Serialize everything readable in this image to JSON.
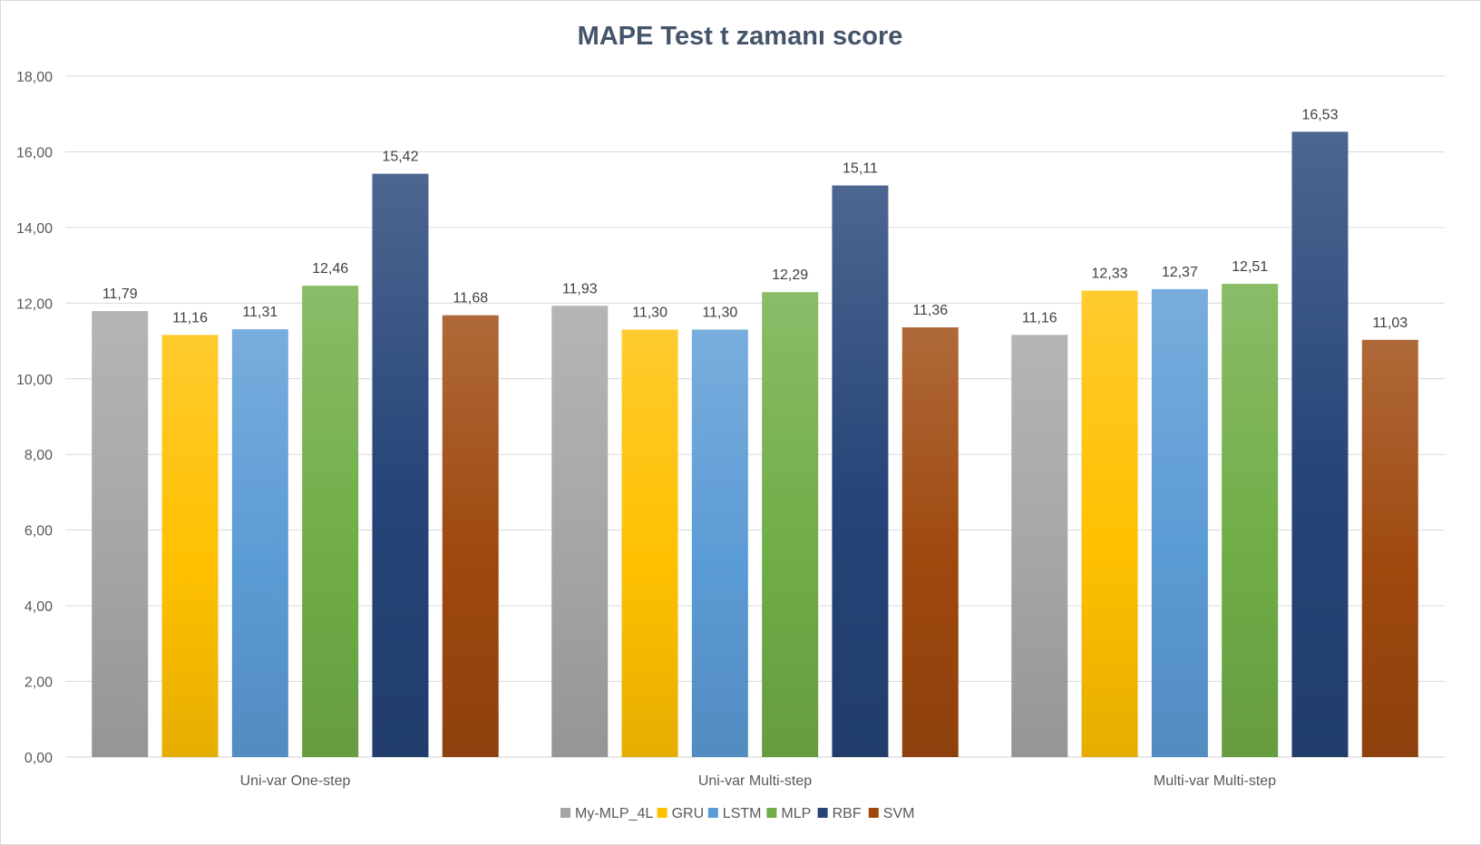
{
  "chart_data": {
    "type": "bar",
    "title": "MAPE Test t zamanı score",
    "xlabel": "",
    "ylabel": "",
    "ylim": [
      0,
      18
    ],
    "yticks": [
      0,
      2,
      4,
      6,
      8,
      10,
      12,
      14,
      16,
      18
    ],
    "ytick_labels": [
      "0,00",
      "2,00",
      "4,00",
      "6,00",
      "8,00",
      "10,00",
      "12,00",
      "14,00",
      "16,00",
      "18,00"
    ],
    "categories": [
      "Uni-var One-step",
      "Uni-var Multi-step",
      "Multi-var Multi-step"
    ],
    "series": [
      {
        "name": "My-MLP_4L",
        "values": [
          11.79,
          11.93,
          11.16
        ],
        "labels": [
          "11,79",
          "11,93",
          "11,16"
        ],
        "color": "#a5a5a5"
      },
      {
        "name": "GRU",
        "values": [
          11.16,
          11.3,
          12.33
        ],
        "labels": [
          "11,16",
          "11,30",
          "12,33"
        ],
        "color": "#ffc000"
      },
      {
        "name": "LSTM",
        "values": [
          11.31,
          11.3,
          12.37
        ],
        "labels": [
          "11,31",
          "11,30",
          "12,37"
        ],
        "color": "#5b9bd5"
      },
      {
        "name": "MLP",
        "values": [
          12.46,
          12.29,
          12.51
        ],
        "labels": [
          "12,46",
          "12,29",
          "12,51"
        ],
        "color": "#70ad47"
      },
      {
        "name": "RBF",
        "values": [
          15.42,
          15.11,
          16.53
        ],
        "labels": [
          "15,42",
          "15,11",
          "16,53"
        ],
        "color": "#264478"
      },
      {
        "name": "SVM",
        "values": [
          11.68,
          11.36,
          11.03
        ],
        "labels": [
          "11,68",
          "11,36",
          "11,03"
        ],
        "color": "#9e480e"
      }
    ],
    "grid": true,
    "legend_position": "bottom"
  }
}
